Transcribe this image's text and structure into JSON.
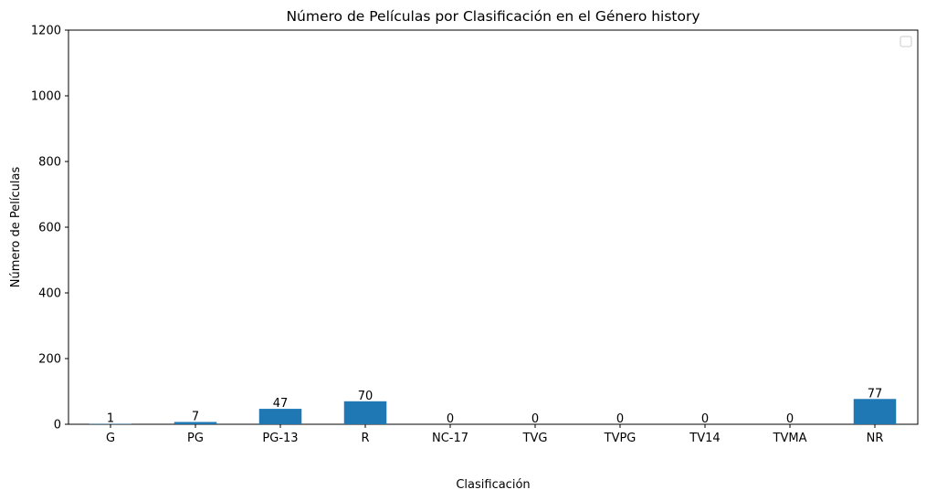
{
  "chart_data": {
    "type": "bar",
    "title": "Número de Películas por Clasificación en el Género history",
    "xlabel": "Clasificación",
    "ylabel": "Número de Películas",
    "categories": [
      "G",
      "PG",
      "PG-13",
      "R",
      "NC-17",
      "TVG",
      "TVPG",
      "TV14",
      "TVMA",
      "NR"
    ],
    "values": [
      1,
      7,
      47,
      70,
      0,
      0,
      0,
      0,
      0,
      77
    ],
    "ylim": [
      0,
      1200
    ],
    "yticks": [
      0,
      200,
      400,
      600,
      800,
      1000,
      1200
    ],
    "bar_color": "#1f77b4",
    "grid": false,
    "legend": "top-right (empty)",
    "data_labels": true
  }
}
